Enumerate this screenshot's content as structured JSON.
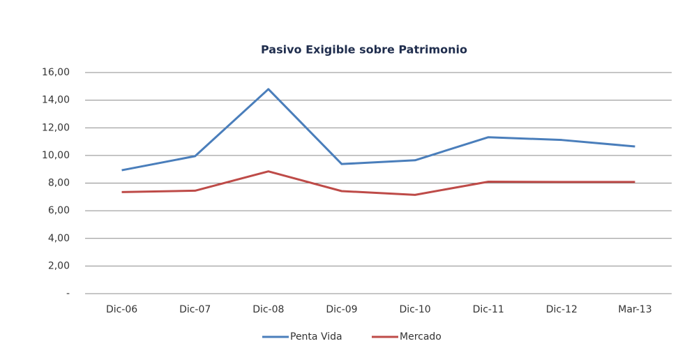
{
  "chart_data": {
    "type": "line",
    "title": "Pasivo Exigible sobre Patrimonio",
    "categories": [
      "Dic-06",
      "Dic-07",
      "Dic-08",
      "Dic-09",
      "Dic-10",
      "Dic-11",
      "Dic-12",
      "Mar-13"
    ],
    "series": [
      {
        "name": "Penta Vida",
        "color": "#4a7ebb",
        "values": [
          8.93,
          9.95,
          14.8,
          9.38,
          9.65,
          11.32,
          11.12,
          10.65
        ]
      },
      {
        "name": "Mercado",
        "color": "#be4b48",
        "values": [
          7.35,
          7.45,
          8.85,
          7.42,
          7.15,
          8.1,
          8.08,
          8.08
        ]
      }
    ],
    "ylim": [
      0,
      16
    ],
    "yticks": [
      {
        "value": 0,
        "label": "-"
      },
      {
        "value": 2,
        "label": "2,00"
      },
      {
        "value": 4,
        "label": "4,00"
      },
      {
        "value": 6,
        "label": "6,00"
      },
      {
        "value": 8,
        "label": "8,00"
      },
      {
        "value": 10,
        "label": "10,00"
      },
      {
        "value": 12,
        "label": "12,00"
      },
      {
        "value": 14,
        "label": "14,00"
      },
      {
        "value": 16,
        "label": "16,00"
      }
    ],
    "grid": true,
    "legend": "bottom"
  }
}
